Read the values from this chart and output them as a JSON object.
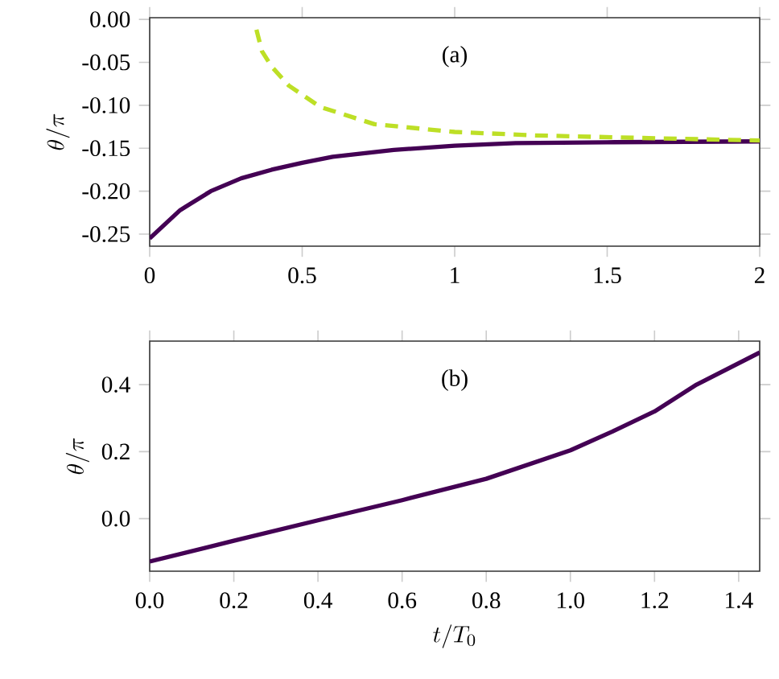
{
  "chart_data": [
    {
      "type": "line",
      "ylabel": "\\theta/\\pi",
      "annotations": [
        "(a)"
      ],
      "xlim": [
        0,
        2
      ],
      "ylim": [
        -0.264,
        0.002
      ],
      "xticks": [
        0,
        0.5,
        1,
        1.5,
        2
      ],
      "yticks": [
        {
          "value": 0,
          "label": "0.00"
        },
        {
          "value": -0.05,
          "label": "-0.05"
        },
        {
          "value": -0.1,
          "label": "-0.10"
        },
        {
          "value": -0.15,
          "label": "-0.15"
        },
        {
          "value": -0.2,
          "label": "-0.20"
        },
        {
          "value": -0.25,
          "label": "-0.25"
        }
      ],
      "marker": "none",
      "series": [
        {
          "color": "#440154",
          "line_style": "solid",
          "x": [
            0,
            0.1,
            0.2,
            0.3,
            0.4,
            0.5,
            0.6,
            0.8,
            1.0,
            1.2,
            1.5,
            2.0
          ],
          "values": [
            -0.255,
            -0.222,
            -0.2,
            -0.185,
            -0.175,
            -0.167,
            -0.16,
            -0.152,
            -0.147,
            -0.144,
            -0.143,
            -0.142
          ]
        },
        {
          "color": "#bddf26",
          "line_style": "dashed",
          "x": [
            0.35,
            0.368,
            0.4,
            0.456,
            0.56,
            0.737,
            1.0,
            1.26,
            1.61,
            2.0
          ],
          "values": [
            -0.012,
            -0.037,
            -0.055,
            -0.077,
            -0.102,
            -0.122,
            -0.131,
            -0.135,
            -0.138,
            -0.141
          ]
        }
      ]
    },
    {
      "type": "line",
      "xlabel": "t/T_0",
      "ylabel": "\\theta/\\pi",
      "annotations": [
        "(b)"
      ],
      "xlim": [
        0,
        1.45
      ],
      "ylim": [
        -0.157,
        0.53
      ],
      "xticks": [
        {
          "value": 0,
          "label": "0.0"
        },
        0.2,
        0.4,
        0.6,
        0.8,
        {
          "value": 1,
          "label": "1.0"
        },
        1.2,
        1.4
      ],
      "yticks": [
        {
          "value": 0,
          "label": "0.0"
        },
        0.2,
        0.4
      ],
      "marker": "none",
      "series": [
        {
          "color": "#440154",
          "line_style": "solid",
          "x": [
            0,
            0.2,
            0.4,
            0.6,
            0.8,
            1.0,
            1.1,
            1.2,
            1.3,
            1.45
          ],
          "values": [
            -0.128,
            -0.066,
            -0.005,
            0.055,
            0.119,
            0.204,
            0.26,
            0.32,
            0.4,
            0.496
          ]
        }
      ]
    }
  ]
}
